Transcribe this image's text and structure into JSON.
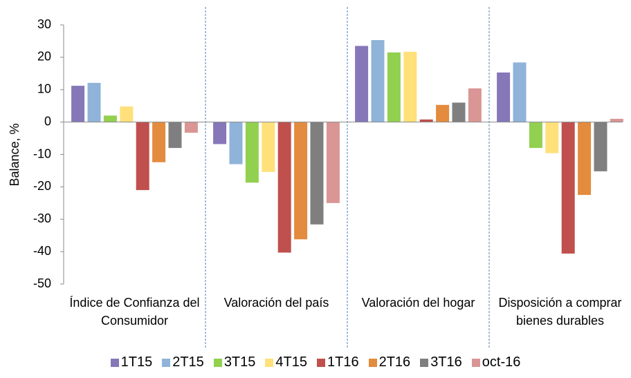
{
  "chart_data": {
    "type": "bar",
    "y_label": "Balance, %",
    "categories": [
      "Índice de Confianza del Consumidor",
      "Valoración del país",
      "Valoración del hogar",
      "Disposición a comprar bienes durables"
    ],
    "series": [
      {
        "name": "1T15",
        "color": "#8677b8",
        "values": [
          11.2,
          -6.8,
          23.5,
          15.3
        ]
      },
      {
        "name": "2T15",
        "color": "#8fb3d9",
        "values": [
          12.1,
          -13,
          25.3,
          18.4
        ]
      },
      {
        "name": "3T15",
        "color": "#92d050",
        "values": [
          2.0,
          -18.7,
          21.5,
          -8
        ]
      },
      {
        "name": "4T15",
        "color": "#ffe07a",
        "values": [
          4.8,
          -15.4,
          21.7,
          -9.6
        ]
      },
      {
        "name": "1T16",
        "color": "#c0504d",
        "values": [
          -21,
          -40.3,
          0.8,
          -40.6
        ]
      },
      {
        "name": "2T16",
        "color": "#e38b3e",
        "values": [
          -12.4,
          -36.2,
          5.3,
          -22.5
        ]
      },
      {
        "name": "3T16",
        "color": "#7f7f7f",
        "values": [
          -8,
          -31.6,
          6,
          -15.2
        ]
      },
      {
        "name": "oct-16",
        "color": "#d99694",
        "values": [
          -3.3,
          -25,
          10.4,
          1
        ]
      }
    ],
    "ylim": [
      -50,
      30
    ],
    "yticks": [
      -50,
      -40,
      -30,
      -20,
      -10,
      0,
      10,
      20,
      30
    ]
  }
}
